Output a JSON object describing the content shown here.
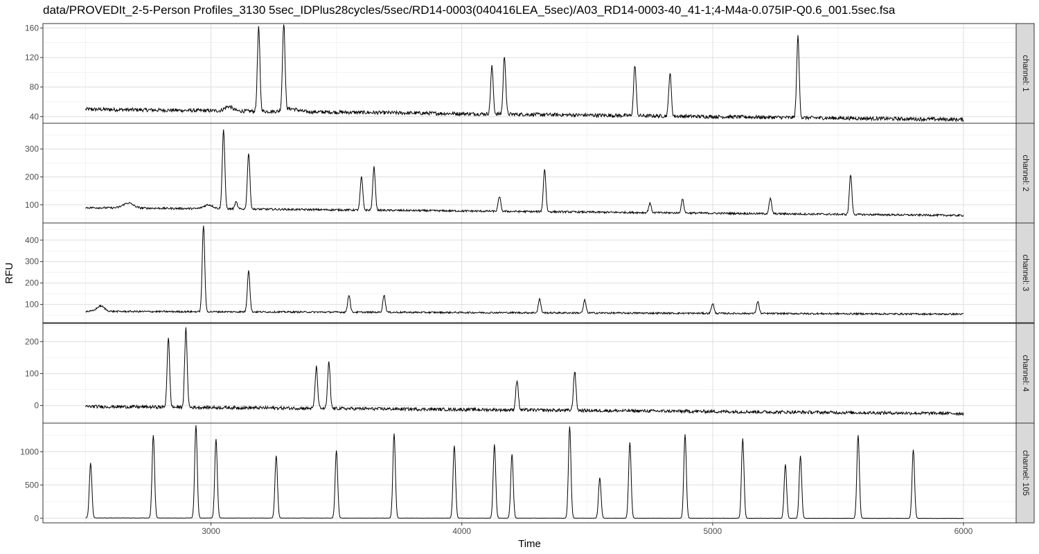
{
  "title": "data/PROVEDIt_2-5-Person Profiles_3130 5sec_IDPlus28cycles/5sec/RD14-0003(040416LEA_5sec)/A03_RD14-0003-40_41-1;4-M4a-0.075IP-Q0.6_001.5sec.fsa",
  "chart_data": {
    "type": "line",
    "title": "data/PROVEDIt_2-5-Person Profiles_3130 5sec_IDPlus28cycles/5sec/RD14-0003(040416LEA_5sec)/A03_RD14-0003-40_41-1;4-M4a-0.075IP-Q0.6_001.5sec.fsa",
    "xlabel": "Time",
    "ylabel": "RFU",
    "xlim": [
      2330,
      6210
    ],
    "x_ticks": [
      3000,
      4000,
      5000,
      6000
    ],
    "x_range": [
      2500,
      6000
    ],
    "grid": true,
    "facets": [
      {
        "strip": "channel: 1",
        "ylim": [
          31,
          166
        ],
        "y_ticks": [
          40,
          80,
          120,
          160
        ],
        "baseline_start": 50,
        "baseline_end": 36,
        "noise": 2.5,
        "bumps": [
          {
            "x": 3070,
            "h": 6,
            "w": 15
          },
          {
            "x": 3320,
            "h": 4,
            "w": 25
          }
        ],
        "peaks": [
          {
            "x": 3190,
            "height": 160
          },
          {
            "x": 3290,
            "height": 165
          },
          {
            "x": 4120,
            "height": 108
          },
          {
            "x": 4170,
            "height": 122
          },
          {
            "x": 4690,
            "height": 110
          },
          {
            "x": 4830,
            "height": 99
          },
          {
            "x": 5340,
            "height": 148
          }
        ]
      },
      {
        "strip": "channel: 2",
        "ylim": [
          35,
          392
        ],
        "y_ticks": [
          100,
          200,
          300
        ],
        "baseline_start": 90,
        "baseline_end": 62,
        "noise": 3.5,
        "bumps": [
          {
            "x": 2670,
            "h": 18,
            "w": 20
          },
          {
            "x": 2990,
            "h": 14,
            "w": 18
          }
        ],
        "peaks": [
          {
            "x": 3050,
            "height": 370
          },
          {
            "x": 3100,
            "height": 110
          },
          {
            "x": 3150,
            "height": 285
          },
          {
            "x": 3600,
            "height": 200
          },
          {
            "x": 3650,
            "height": 235
          },
          {
            "x": 4150,
            "height": 130
          },
          {
            "x": 4330,
            "height": 228
          },
          {
            "x": 4750,
            "height": 106
          },
          {
            "x": 4880,
            "height": 120
          },
          {
            "x": 5230,
            "height": 122
          },
          {
            "x": 5550,
            "height": 208
          }
        ]
      },
      {
        "strip": "channel: 3",
        "ylim": [
          15,
          480
        ],
        "y_ticks": [
          100,
          200,
          300,
          400
        ],
        "baseline_start": 68,
        "baseline_end": 55,
        "noise": 4,
        "bumps": [
          {
            "x": 2560,
            "h": 25,
            "w": 15
          }
        ],
        "peaks": [
          {
            "x": 2970,
            "height": 470
          },
          {
            "x": 3150,
            "height": 260
          },
          {
            "x": 3550,
            "height": 145
          },
          {
            "x": 3690,
            "height": 145
          },
          {
            "x": 4310,
            "height": 125
          },
          {
            "x": 4490,
            "height": 120
          },
          {
            "x": 5000,
            "height": 105
          },
          {
            "x": 5180,
            "height": 115
          }
        ]
      },
      {
        "strip": "channel: 4",
        "ylim": [
          -55,
          257
        ],
        "y_ticks": [
          0,
          100,
          200
        ],
        "baseline_start": -3,
        "baseline_end": -25,
        "noise": 5,
        "bumps": [],
        "peaks": [
          {
            "x": 2830,
            "height": 210
          },
          {
            "x": 2900,
            "height": 240
          },
          {
            "x": 3420,
            "height": 120
          },
          {
            "x": 3470,
            "height": 135
          },
          {
            "x": 4220,
            "height": 80
          },
          {
            "x": 4450,
            "height": 108
          }
        ]
      },
      {
        "strip": "channel: 105",
        "ylim": [
          -70,
          1430
        ],
        "y_ticks": [
          0,
          500,
          1000
        ],
        "baseline_start": 3,
        "baseline_end": -3,
        "noise": 2,
        "bumps": [],
        "peaks": [
          {
            "x": 2520,
            "height": 830
          },
          {
            "x": 2770,
            "height": 1250
          },
          {
            "x": 2940,
            "height": 1400
          },
          {
            "x": 3020,
            "height": 1190
          },
          {
            "x": 3260,
            "height": 940
          },
          {
            "x": 3500,
            "height": 1020
          },
          {
            "x": 3730,
            "height": 1270
          },
          {
            "x": 3970,
            "height": 1090
          },
          {
            "x": 4130,
            "height": 1110
          },
          {
            "x": 4200,
            "height": 960
          },
          {
            "x": 4430,
            "height": 1380
          },
          {
            "x": 4550,
            "height": 610
          },
          {
            "x": 4670,
            "height": 1140
          },
          {
            "x": 4890,
            "height": 1260
          },
          {
            "x": 5120,
            "height": 1200
          },
          {
            "x": 5290,
            "height": 810
          },
          {
            "x": 5350,
            "height": 940
          },
          {
            "x": 5580,
            "height": 1250
          },
          {
            "x": 5800,
            "height": 1030
          }
        ]
      }
    ]
  }
}
